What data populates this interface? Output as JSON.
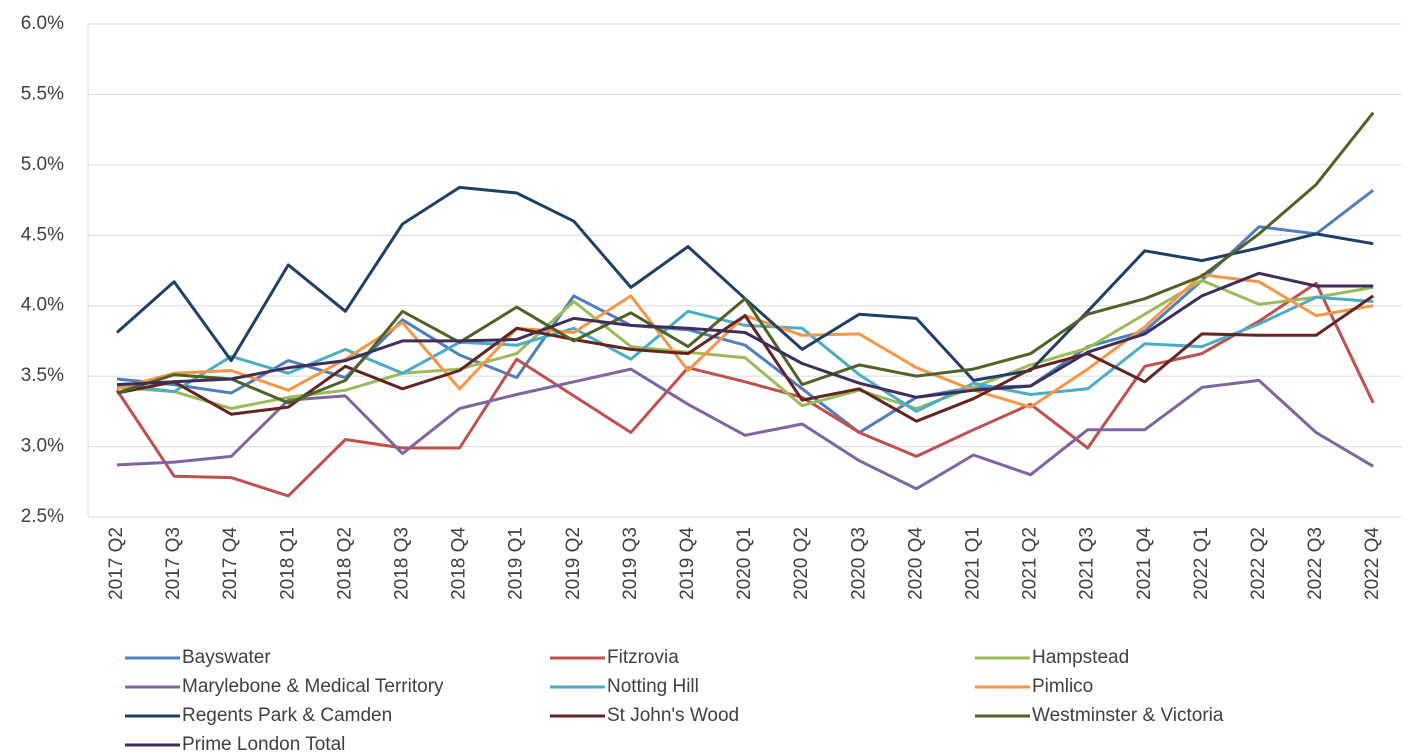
{
  "chart_data": {
    "type": "line",
    "categories": [
      "2017 Q2",
      "2017 Q3",
      "2017 Q4",
      "2018 Q1",
      "2018 Q2",
      "2018 Q3",
      "2018 Q4",
      "2019 Q1",
      "2019 Q2",
      "2019 Q3",
      "2019 Q4",
      "2020 Q1",
      "2020 Q2",
      "2020 Q3",
      "2020 Q4",
      "2021 Q1",
      "2021 Q2",
      "2021 Q3",
      "2021 Q4",
      "2022 Q1",
      "2022 Q2",
      "2022 Q3",
      "2022 Q4"
    ],
    "ylim": [
      2.5,
      6.0
    ],
    "yticks": [
      {
        "value": 2.5,
        "label": "2.5%"
      },
      {
        "value": 3.0,
        "label": "3.0%"
      },
      {
        "value": 3.5,
        "label": "3.5%"
      },
      {
        "value": 4.0,
        "label": "4.0%"
      },
      {
        "value": 4.5,
        "label": "4.5%"
      },
      {
        "value": 5.0,
        "label": "5.0%"
      },
      {
        "value": 5.5,
        "label": "5.5%"
      },
      {
        "value": 6.0,
        "label": "6.0%"
      }
    ],
    "grid": true,
    "series": [
      {
        "name": "Bayswater",
        "color": "#4f7ec0",
        "values": [
          3.48,
          3.44,
          3.38,
          3.61,
          3.49,
          3.9,
          3.65,
          3.49,
          4.07,
          3.86,
          3.83,
          3.72,
          3.41,
          3.1,
          3.35,
          3.42,
          3.43,
          3.71,
          3.82,
          4.18,
          4.56,
          4.51,
          4.82
        ]
      },
      {
        "name": "Fitzrovia",
        "color": "#c0504d",
        "values": [
          3.4,
          2.79,
          2.78,
          2.65,
          3.05,
          2.99,
          2.99,
          3.62,
          3.36,
          3.1,
          3.56,
          3.46,
          3.35,
          3.1,
          2.93,
          3.12,
          3.3,
          2.99,
          3.57,
          3.66,
          3.89,
          4.16,
          3.31
        ]
      },
      {
        "name": "Hampstead",
        "color": "#9bbb59",
        "values": [
          3.42,
          3.39,
          3.27,
          3.35,
          3.4,
          3.52,
          3.55,
          3.66,
          4.03,
          3.71,
          3.67,
          3.63,
          3.29,
          3.4,
          3.27,
          3.42,
          3.58,
          3.7,
          3.94,
          4.18,
          4.01,
          4.06,
          4.13
        ]
      },
      {
        "name": "Marylebone & Medical Territory",
        "color": "#8064a2",
        "values": [
          2.87,
          2.89,
          2.93,
          3.33,
          3.36,
          2.95,
          3.27,
          3.37,
          3.46,
          3.55,
          3.3,
          3.08,
          3.16,
          2.9,
          2.7,
          2.94,
          2.8,
          3.12,
          3.12,
          3.42,
          3.47,
          3.1,
          2.86
        ]
      },
      {
        "name": "Notting Hill",
        "color": "#4bacc6",
        "values": [
          3.44,
          3.39,
          3.64,
          3.52,
          3.69,
          3.52,
          3.74,
          3.72,
          3.84,
          3.62,
          3.96,
          3.86,
          3.84,
          3.51,
          3.25,
          3.45,
          3.37,
          3.41,
          3.73,
          3.71,
          3.87,
          4.06,
          4.03
        ]
      },
      {
        "name": "Pimlico",
        "color": "#f79646",
        "values": [
          3.41,
          3.52,
          3.54,
          3.4,
          3.62,
          3.88,
          3.41,
          3.84,
          3.81,
          4.07,
          3.54,
          3.93,
          3.79,
          3.8,
          3.56,
          3.4,
          3.28,
          3.55,
          3.85,
          4.22,
          4.17,
          3.93,
          4.0
        ]
      },
      {
        "name": "Regents Park & Camden",
        "color": "#1f3f66",
        "values": [
          3.81,
          4.17,
          3.61,
          4.29,
          3.96,
          4.58,
          4.84,
          4.8,
          4.6,
          4.13,
          4.42,
          4.05,
          3.69,
          3.94,
          3.91,
          3.47,
          3.54,
          3.96,
          4.39,
          4.32,
          4.41,
          4.51,
          4.44
        ]
      },
      {
        "name": "St John's Wood",
        "color": "#632523",
        "values": [
          3.38,
          3.46,
          3.23,
          3.28,
          3.57,
          3.41,
          3.54,
          3.84,
          3.76,
          3.69,
          3.66,
          3.93,
          3.33,
          3.41,
          3.18,
          3.34,
          3.55,
          3.66,
          3.46,
          3.8,
          3.79,
          3.79,
          4.07
        ]
      },
      {
        "name": "Westminster & Victoria",
        "color": "#4f6228",
        "values": [
          3.38,
          3.51,
          3.48,
          3.31,
          3.47,
          3.96,
          3.74,
          3.99,
          3.75,
          3.95,
          3.71,
          4.05,
          3.44,
          3.58,
          3.5,
          3.55,
          3.66,
          3.94,
          4.05,
          4.21,
          4.51,
          4.86,
          5.37
        ]
      },
      {
        "name": "Prime London Total",
        "color": "#3f2d5a",
        "values": [
          3.44,
          3.46,
          3.48,
          3.56,
          3.61,
          3.75,
          3.75,
          3.76,
          3.91,
          3.86,
          3.84,
          3.81,
          3.59,
          3.45,
          3.35,
          3.4,
          3.43,
          3.67,
          3.8,
          4.07,
          4.23,
          4.14,
          4.14
        ]
      }
    ]
  }
}
